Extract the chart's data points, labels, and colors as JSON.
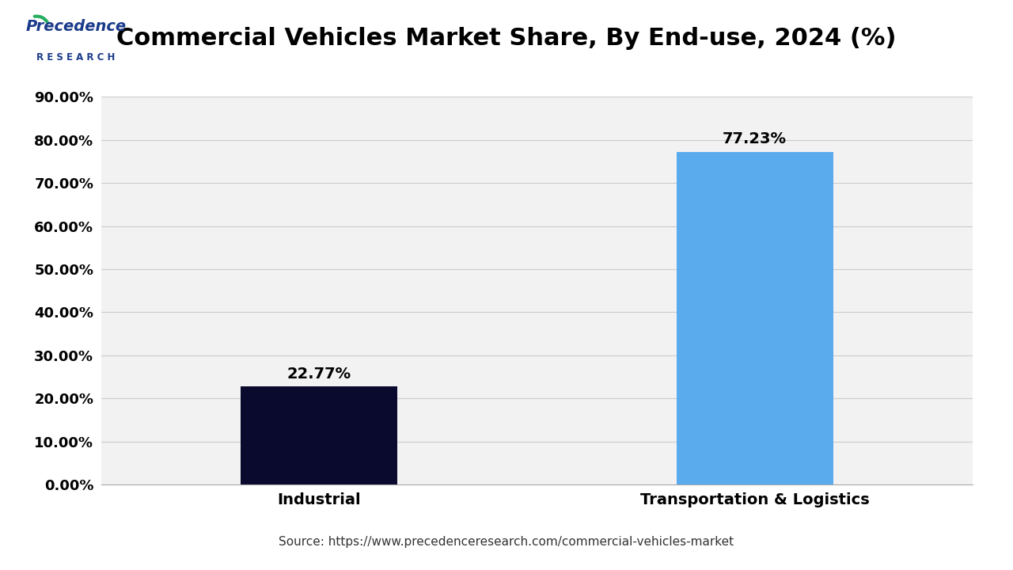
{
  "title": "Commercial Vehicles Market Share, By End-use, 2024 (%)",
  "categories": [
    "Industrial",
    "Transportation & Logistics"
  ],
  "values": [
    22.77,
    77.23
  ],
  "bar_colors": [
    "#0a0a2e",
    "#5aaaee"
  ],
  "value_labels": [
    "22.77%",
    "77.23%"
  ],
  "ylim": [
    0,
    90
  ],
  "yticks": [
    0,
    10,
    20,
    30,
    40,
    50,
    60,
    70,
    80,
    90
  ],
  "ytick_labels": [
    "0.00%",
    "10.00%",
    "20.00%",
    "30.00%",
    "40.00%",
    "50.00%",
    "60.00%",
    "70.00%",
    "80.00%",
    "90.00%"
  ],
  "background_color": "#ffffff",
  "plot_bg_color": "#f2f2f2",
  "source_text": "Source: https://www.precedenceresearch.com/commercial-vehicles-market",
  "title_fontsize": 22,
  "tick_fontsize": 13,
  "label_fontsize": 14,
  "value_fontsize": 14,
  "source_fontsize": 11,
  "bar_width": 0.18,
  "header_line_color": "#1a1a6e",
  "grid_color": "#cccccc",
  "logo_text_color": "#1a3a8a"
}
